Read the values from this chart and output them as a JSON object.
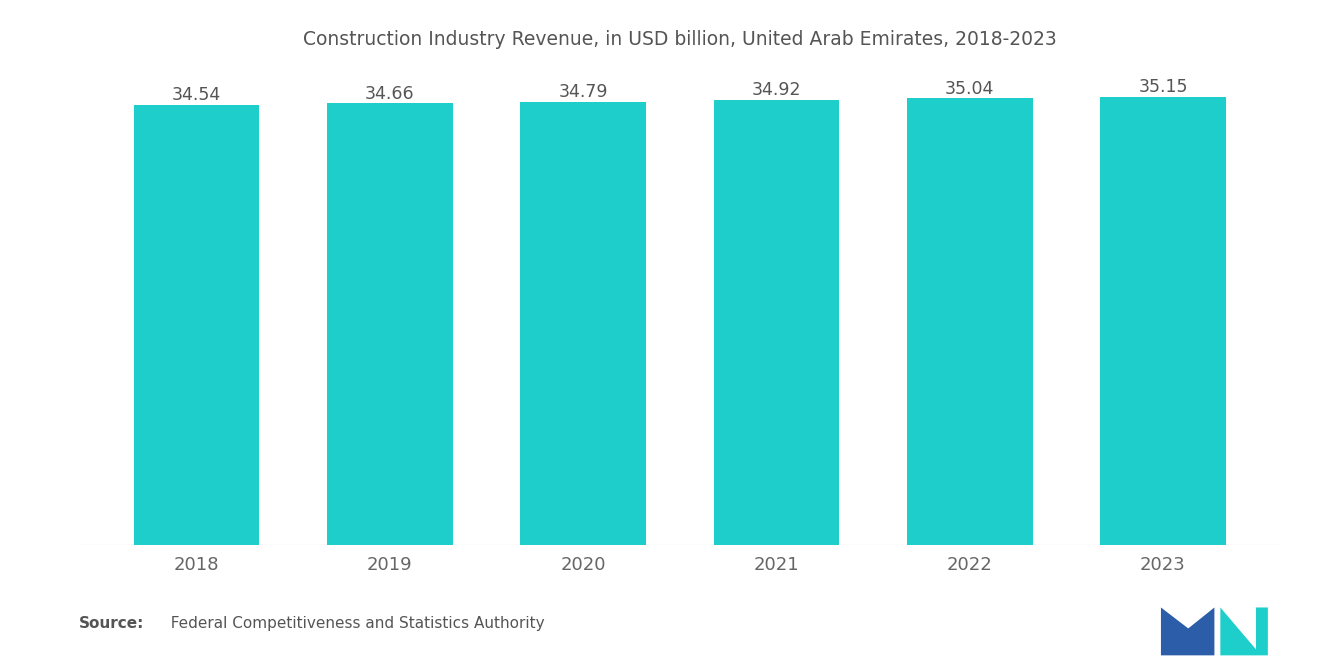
{
  "title": "Construction Industry Revenue, in USD billion, United Arab Emirates, 2018-2023",
  "categories": [
    "2018",
    "2019",
    "2020",
    "2021",
    "2022",
    "2023"
  ],
  "values": [
    34.54,
    34.66,
    34.79,
    34.92,
    35.04,
    35.15
  ],
  "bar_color": "#1ECECA",
  "background_color": "#ffffff",
  "title_fontsize": 13.5,
  "tick_fontsize": 13,
  "value_fontsize": 12.5,
  "ylim_min": 0,
  "ylim_max": 36.5,
  "source_bold": "Source:",
  "source_text": "  Federal Competitiveness and Statistics Authority",
  "bar_width": 0.65,
  "title_color": "#555555",
  "tick_color": "#666666",
  "value_color": "#555555",
  "source_color": "#555555",
  "source_fontsize": 11
}
